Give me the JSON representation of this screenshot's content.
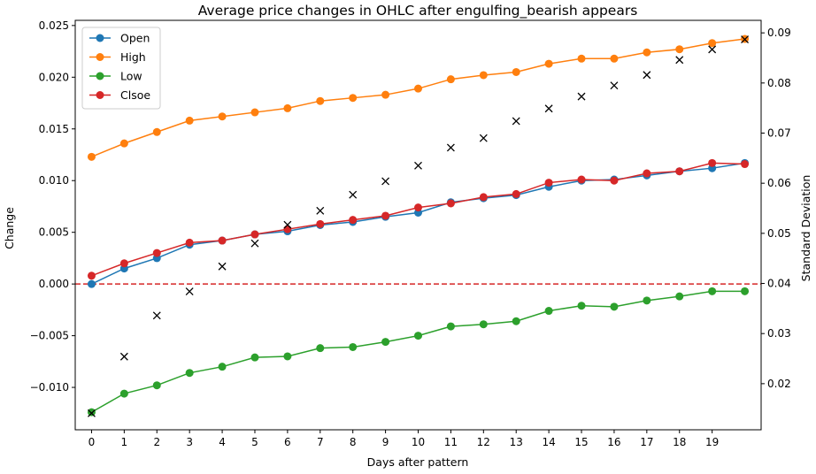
{
  "chart_data": {
    "type": "line",
    "title": "Average price changes in OHLC after engulfing_bearish appears",
    "xlabel": "Days after pattern",
    "ylabel": "Change",
    "y2label": "Standard Deviation",
    "x": [
      0,
      1,
      2,
      3,
      4,
      5,
      6,
      7,
      8,
      9,
      10,
      11,
      12,
      13,
      14,
      15,
      16,
      17,
      18,
      19,
      20
    ],
    "x_tick_labels": [
      "0",
      "1",
      "2",
      "3",
      "4",
      "5",
      "6",
      "7",
      "8",
      "9",
      "10",
      "11",
      "12",
      "13",
      "14",
      "15",
      "16",
      "17",
      "18",
      "19"
    ],
    "xlim": [
      -0.5,
      20.5
    ],
    "ylim": [
      -0.0141,
      0.0255
    ],
    "y_ticks": [
      -0.01,
      -0.005,
      0.0,
      0.005,
      0.01,
      0.015,
      0.02,
      0.025
    ],
    "y_tick_labels": [
      "−0.010",
      "−0.005",
      "0.000",
      "0.005",
      "0.010",
      "0.015",
      "0.020",
      "0.025"
    ],
    "y2lim": [
      0.0108,
      0.0925
    ],
    "y2_ticks": [
      0.02,
      0.03,
      0.04,
      0.05,
      0.06,
      0.07,
      0.08,
      0.09
    ],
    "y2_tick_labels": [
      "0.02",
      "0.03",
      "0.04",
      "0.05",
      "0.06",
      "0.07",
      "0.08",
      "0.09"
    ],
    "zero_line": {
      "y": 0,
      "color": "#d62728",
      "style": "dashed"
    },
    "legend_position": "top-left",
    "grid": false,
    "series": [
      {
        "name": "Open",
        "color": "#1f77b4",
        "axis": "left",
        "values": [
          0.0,
          0.0015,
          0.0025,
          0.0038,
          0.0042,
          0.0048,
          0.0051,
          0.0057,
          0.006,
          0.0065,
          0.0069,
          0.0079,
          0.0083,
          0.0086,
          0.0094,
          0.01,
          0.0101,
          0.0105,
          0.0109,
          0.0112,
          0.0117
        ]
      },
      {
        "name": "High",
        "color": "#ff7f0e",
        "axis": "left",
        "values": [
          0.0123,
          0.0136,
          0.0147,
          0.0158,
          0.0162,
          0.0166,
          0.017,
          0.0177,
          0.018,
          0.0183,
          0.0189,
          0.0198,
          0.0202,
          0.0205,
          0.0213,
          0.0218,
          0.0218,
          0.0224,
          0.0227,
          0.0233,
          0.0237
        ]
      },
      {
        "name": "Low",
        "color": "#2ca02c",
        "axis": "left",
        "values": [
          -0.0124,
          -0.0106,
          -0.0098,
          -0.0086,
          -0.008,
          -0.0071,
          -0.007,
          -0.0062,
          -0.0061,
          -0.0056,
          -0.005,
          -0.0041,
          -0.0039,
          -0.0036,
          -0.0026,
          -0.0021,
          -0.0022,
          -0.0016,
          -0.0012,
          -0.0007,
          -0.0007
        ]
      },
      {
        "name": "Clsoe",
        "color": "#d62728",
        "axis": "left",
        "values": [
          0.0008,
          0.002,
          0.003,
          0.004,
          0.0042,
          0.0048,
          0.0053,
          0.0058,
          0.0062,
          0.0066,
          0.0074,
          0.0078,
          0.0084,
          0.0087,
          0.0098,
          0.0101,
          0.01,
          0.0107,
          0.0109,
          0.0117,
          0.0116
        ]
      }
    ],
    "std_markers": {
      "marker": "x",
      "color": "#000000",
      "axis": "right",
      "values": [
        0.0141,
        0.0254,
        0.0336,
        0.0384,
        0.0434,
        0.048,
        0.0517,
        0.0545,
        0.0577,
        0.0604,
        0.0635,
        0.0671,
        0.069,
        0.0724,
        0.0749,
        0.0773,
        0.0795,
        0.0816,
        0.0846,
        0.0867,
        0.0887
      ]
    }
  }
}
